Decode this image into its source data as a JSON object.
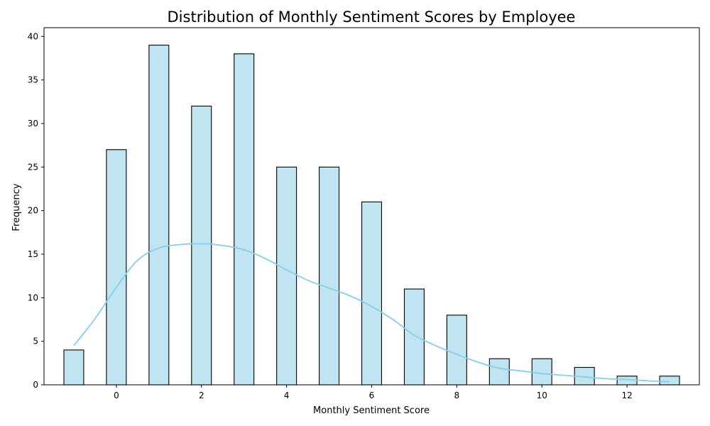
{
  "chart_data": {
    "type": "bar",
    "title": "Distribution of Monthly Sentiment Scores by Employee",
    "xlabel": "Monthly Sentiment Score",
    "ylabel": "Frequency",
    "xlim": [
      -1.7,
      13.7
    ],
    "ylim": [
      0,
      41
    ],
    "xticks": [
      0,
      2,
      4,
      6,
      8,
      10,
      12
    ],
    "yticks": [
      0,
      5,
      10,
      15,
      20,
      25,
      30,
      35,
      40
    ],
    "bin_width": 0.466,
    "bar_fill": "#c1e4f3",
    "bar_edge": "#000000",
    "kde_color": "#87ceeb",
    "bars": [
      {
        "x": -1,
        "count": 4
      },
      {
        "x": 0,
        "count": 27
      },
      {
        "x": 1,
        "count": 39
      },
      {
        "x": 2,
        "count": 32
      },
      {
        "x": 3,
        "count": 38
      },
      {
        "x": 4,
        "count": 25
      },
      {
        "x": 5,
        "count": 25
      },
      {
        "x": 6,
        "count": 21
      },
      {
        "x": 7,
        "count": 11
      },
      {
        "x": 8,
        "count": 8
      },
      {
        "x": 9,
        "count": 3
      },
      {
        "x": 10,
        "count": 3
      },
      {
        "x": 11,
        "count": 2
      },
      {
        "x": 12,
        "count": 1
      },
      {
        "x": 13,
        "count": 1
      }
    ],
    "kde": {
      "x": [
        -1,
        -0.5,
        0,
        0.5,
        1,
        1.5,
        2,
        2.5,
        3,
        3.5,
        4,
        4.5,
        5,
        5.5,
        6,
        6.5,
        7,
        7.5,
        8,
        8.5,
        9,
        9.5,
        10,
        10.5,
        11,
        11.5,
        12,
        12.5,
        13
      ],
      "y": [
        4.5,
        7.6,
        11.2,
        14.3,
        15.7,
        16.1,
        16.2,
        16.0,
        15.5,
        14.5,
        13.2,
        12.0,
        11.1,
        10.2,
        9.0,
        7.5,
        5.7,
        4.5,
        3.5,
        2.6,
        1.9,
        1.6,
        1.3,
        1.1,
        0.9,
        0.7,
        0.6,
        0.45,
        0.35
      ]
    }
  }
}
